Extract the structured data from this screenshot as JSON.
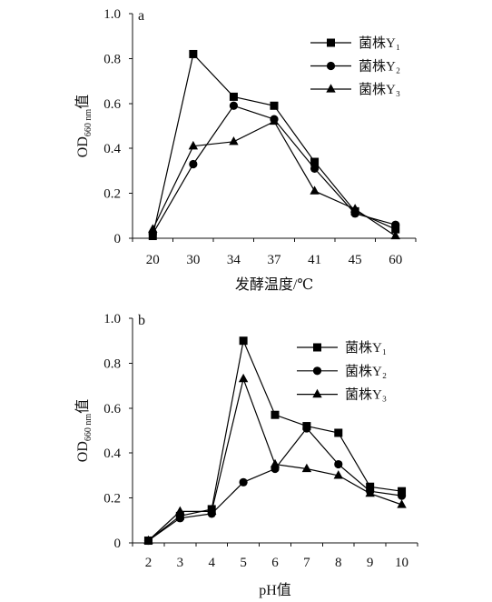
{
  "chart_data": [
    {
      "type": "line",
      "panel_label": "a",
      "categories": [
        "20",
        "30",
        "34",
        "37",
        "41",
        "45",
        "60"
      ],
      "xlabel": "发酵温度/℃",
      "ylabel": {
        "main": "OD",
        "subscript": "660 nm",
        "suffix": "值"
      },
      "ylim": [
        0,
        1.0
      ],
      "yticks": [
        "0",
        "0.2",
        "0.4",
        "0.6",
        "0.8",
        "1.0"
      ],
      "grid": false,
      "legend": "top-right",
      "series": [
        {
          "name": "菌株Y₁",
          "marker": "square",
          "color": "#000000",
          "values": [
            0.01,
            0.82,
            0.63,
            0.59,
            0.34,
            0.12,
            0.04
          ]
        },
        {
          "name": "菌株Y₂",
          "marker": "circle",
          "color": "#000000",
          "values": [
            0.02,
            0.33,
            0.59,
            0.53,
            0.31,
            0.11,
            0.06
          ]
        },
        {
          "name": "菌株Y₃",
          "marker": "triangle",
          "color": "#000000",
          "values": [
            0.04,
            0.41,
            0.43,
            0.52,
            0.21,
            0.13,
            0.01
          ]
        }
      ]
    },
    {
      "type": "line",
      "panel_label": "b",
      "categories": [
        "2",
        "3",
        "4",
        "5",
        "6",
        "7",
        "8",
        "9",
        "10"
      ],
      "xlabel": "pH值",
      "ylabel": {
        "main": "OD",
        "subscript": "660 nm",
        "suffix": "值"
      },
      "ylim": [
        0,
        1.0
      ],
      "yticks": [
        "0",
        "0.2",
        "0.4",
        "0.6",
        "0.8",
        "1.0"
      ],
      "grid": false,
      "legend": "top-right",
      "series": [
        {
          "name": "菌株Y₁",
          "marker": "square",
          "color": "#000000",
          "values": [
            0.01,
            0.12,
            0.15,
            0.9,
            0.57,
            0.52,
            0.49,
            0.25,
            0.23
          ]
        },
        {
          "name": "菌株Y₂",
          "marker": "circle",
          "color": "#000000",
          "values": [
            0.01,
            0.11,
            0.13,
            0.27,
            0.33,
            0.51,
            0.35,
            0.23,
            0.21
          ]
        },
        {
          "name": "菌株Y₃",
          "marker": "triangle",
          "color": "#000000",
          "values": [
            0.01,
            0.14,
            0.14,
            0.73,
            0.35,
            0.33,
            0.3,
            0.22,
            0.17
          ]
        }
      ]
    }
  ]
}
